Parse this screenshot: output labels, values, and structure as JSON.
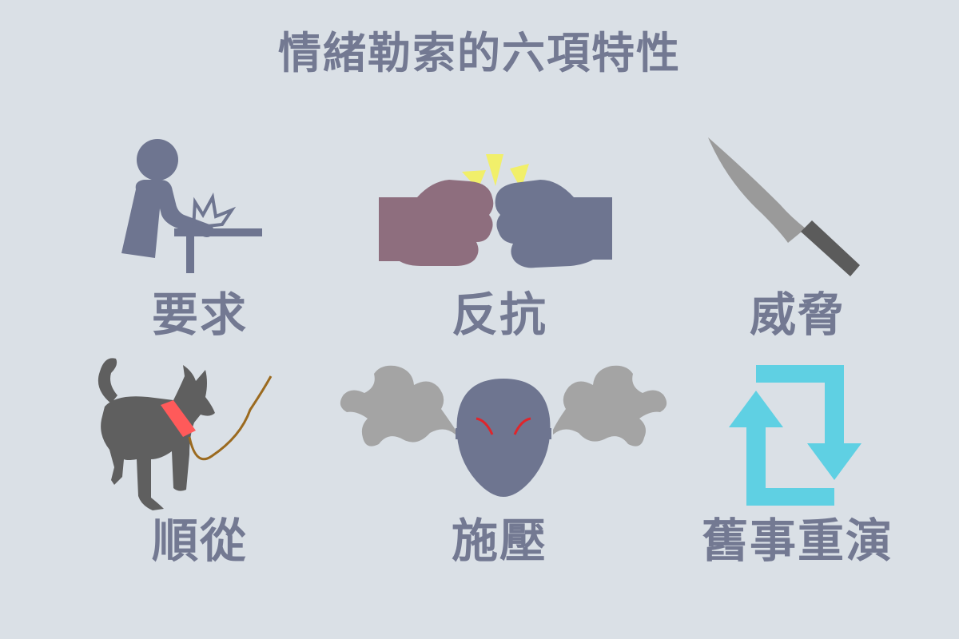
{
  "title": "情緒勒索的六項特性",
  "traits": [
    {
      "label": "要求",
      "icon": "demanding-person-icon"
    },
    {
      "label": "反抗",
      "icon": "fist-bump-icon"
    },
    {
      "label": "威脅",
      "icon": "knife-icon"
    },
    {
      "label": "順從",
      "icon": "leashed-dog-icon"
    },
    {
      "label": "施壓",
      "icon": "angry-face-steam-icon"
    },
    {
      "label": "舊事重演",
      "icon": "repeat-arrows-icon"
    }
  ],
  "colors": {
    "background": "#dae0e6",
    "text": "#737992",
    "figure": "#6e7590",
    "fist_left": "#8e6e7e",
    "spark": "#f1ef6a",
    "blade": "#9a9a9a",
    "handle": "#5b5b5b",
    "dog": "#5f5f5f",
    "collar": "#ff5a5a",
    "leash": "#9b6a1f",
    "steam": "#a4a4a4",
    "eyebrow": "#e0252b",
    "arrows": "#5fd0e3"
  }
}
